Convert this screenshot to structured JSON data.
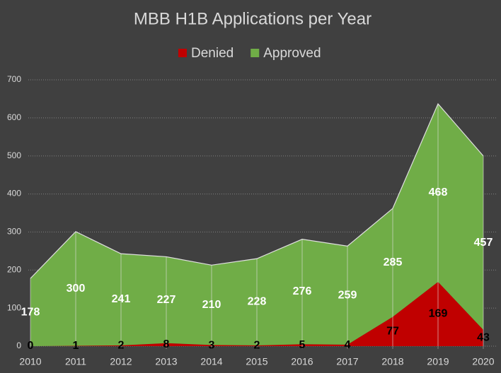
{
  "chart_data": {
    "type": "stacked-area",
    "title": "MBB H1B Applications per Year",
    "x": [
      2010,
      2011,
      2012,
      2013,
      2014,
      2015,
      2016,
      2017,
      2018,
      2019,
      2020
    ],
    "xlim": [
      2010,
      2020
    ],
    "xticks": [
      2010,
      2011,
      2012,
      2013,
      2014,
      2015,
      2016,
      2017,
      2018,
      2019,
      2020
    ],
    "ylim": [
      0,
      700
    ],
    "yticks": [
      0,
      100,
      200,
      300,
      400,
      500,
      600,
      700
    ],
    "grid": true,
    "legend": "top",
    "series": [
      {
        "name": "Denied",
        "color": "#c00000",
        "label_color": "#000000",
        "values": [
          0,
          1,
          2,
          8,
          3,
          2,
          5,
          4,
          77,
          169,
          43
        ]
      },
      {
        "name": "Approved",
        "color": "#70ad47",
        "label_color": "#ffffff",
        "values": [
          178,
          300,
          241,
          227,
          210,
          228,
          276,
          259,
          285,
          468,
          457
        ]
      }
    ]
  }
}
